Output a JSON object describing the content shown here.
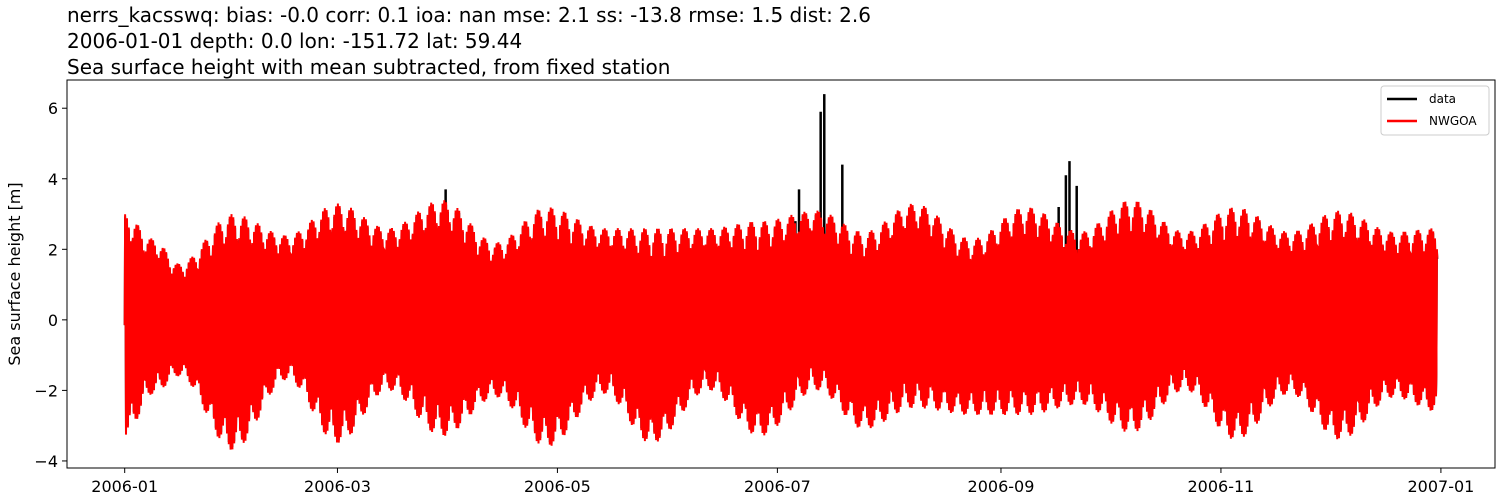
{
  "chart_data": {
    "type": "line",
    "title_lines": [
      "nerrs_kacsswq: bias: -0.0  corr: 0.1  ioa: nan  mse: 2.1  ss: -13.8  rmse: 1.5  dist: 2.6",
      "2006-01-01 depth: 0.0 lon: -151.72 lat: 59.44",
      "Sea surface height with mean subtracted, from fixed station"
    ],
    "xlabel": "",
    "ylabel": "Sea surface height [m]",
    "xlim": [
      "2005-12-16",
      "2007-01-16"
    ],
    "ylim": [
      -4.2,
      6.8
    ],
    "x_ticks": [
      "2006-01",
      "2006-03",
      "2006-05",
      "2006-07",
      "2006-09",
      "2006-11",
      "2007-01"
    ],
    "y_ticks": [
      "−4",
      "−2",
      "0",
      "2",
      "4",
      "6"
    ],
    "legend": {
      "placement": "upper right",
      "entries": [
        {
          "label": "data",
          "color": "#000000"
        },
        {
          "label": "NWGOA",
          "color": "#ff0000"
        }
      ]
    },
    "series": [
      {
        "name": "data",
        "color": "#000000",
        "peaks": [
          {
            "date": "2006-03-31",
            "value": 3.7
          },
          {
            "date": "2006-07-06",
            "value": 2.8
          },
          {
            "date": "2006-07-07",
            "value": 3.7
          },
          {
            "date": "2006-07-13",
            "value": 5.9
          },
          {
            "date": "2006-07-14",
            "value": 6.4
          },
          {
            "date": "2006-07-19",
            "value": 4.4
          },
          {
            "date": "2006-09-17",
            "value": 3.2
          },
          {
            "date": "2006-09-19",
            "value": 4.1
          },
          {
            "date": "2006-09-20",
            "value": 4.5
          },
          {
            "date": "2006-09-22",
            "value": 3.8
          }
        ]
      },
      {
        "name": "NWGOA",
        "color": "#ff0000",
        "envelope": [
          {
            "date": "2006-01-01",
            "max": 3.0,
            "min": -3.3
          },
          {
            "date": "2006-01-09",
            "max": 2.3,
            "min": -2.1
          },
          {
            "date": "2006-01-16",
            "max": 1.6,
            "min": -1.6
          },
          {
            "date": "2006-01-31",
            "max": 3.0,
            "min": -3.7
          },
          {
            "date": "2006-02-15",
            "max": 2.4,
            "min": -1.7
          },
          {
            "date": "2006-03-01",
            "max": 3.3,
            "min": -3.5
          },
          {
            "date": "2006-03-15",
            "max": 2.6,
            "min": -2.0
          },
          {
            "date": "2006-03-30",
            "max": 3.4,
            "min": -3.3
          },
          {
            "date": "2006-04-14",
            "max": 2.2,
            "min": -2.2
          },
          {
            "date": "2006-04-28",
            "max": 3.2,
            "min": -3.6
          },
          {
            "date": "2006-05-14",
            "max": 2.6,
            "min": -2.1
          },
          {
            "date": "2006-05-27",
            "max": 2.6,
            "min": -3.5
          },
          {
            "date": "2006-06-12",
            "max": 2.6,
            "min": -2.0
          },
          {
            "date": "2006-06-26",
            "max": 2.8,
            "min": -3.3
          },
          {
            "date": "2006-07-12",
            "max": 3.1,
            "min": -2.0
          },
          {
            "date": "2006-07-25",
            "max": 2.5,
            "min": -3.1
          },
          {
            "date": "2006-08-08",
            "max": 3.3,
            "min": -2.5
          },
          {
            "date": "2006-08-24",
            "max": 2.3,
            "min": -2.7
          },
          {
            "date": "2006-09-08",
            "max": 3.2,
            "min": -2.7
          },
          {
            "date": "2006-09-23",
            "max": 2.5,
            "min": -2.4
          },
          {
            "date": "2006-10-07",
            "max": 3.4,
            "min": -3.2
          },
          {
            "date": "2006-10-22",
            "max": 2.5,
            "min": -2.0
          },
          {
            "date": "2006-11-05",
            "max": 3.2,
            "min": -3.4
          },
          {
            "date": "2006-11-20",
            "max": 2.5,
            "min": -2.1
          },
          {
            "date": "2006-12-04",
            "max": 3.1,
            "min": -3.4
          },
          {
            "date": "2006-12-19",
            "max": 2.5,
            "min": -2.2
          },
          {
            "date": "2006-12-31",
            "max": 2.6,
            "min": -2.6
          }
        ]
      }
    ],
    "grid": false
  }
}
